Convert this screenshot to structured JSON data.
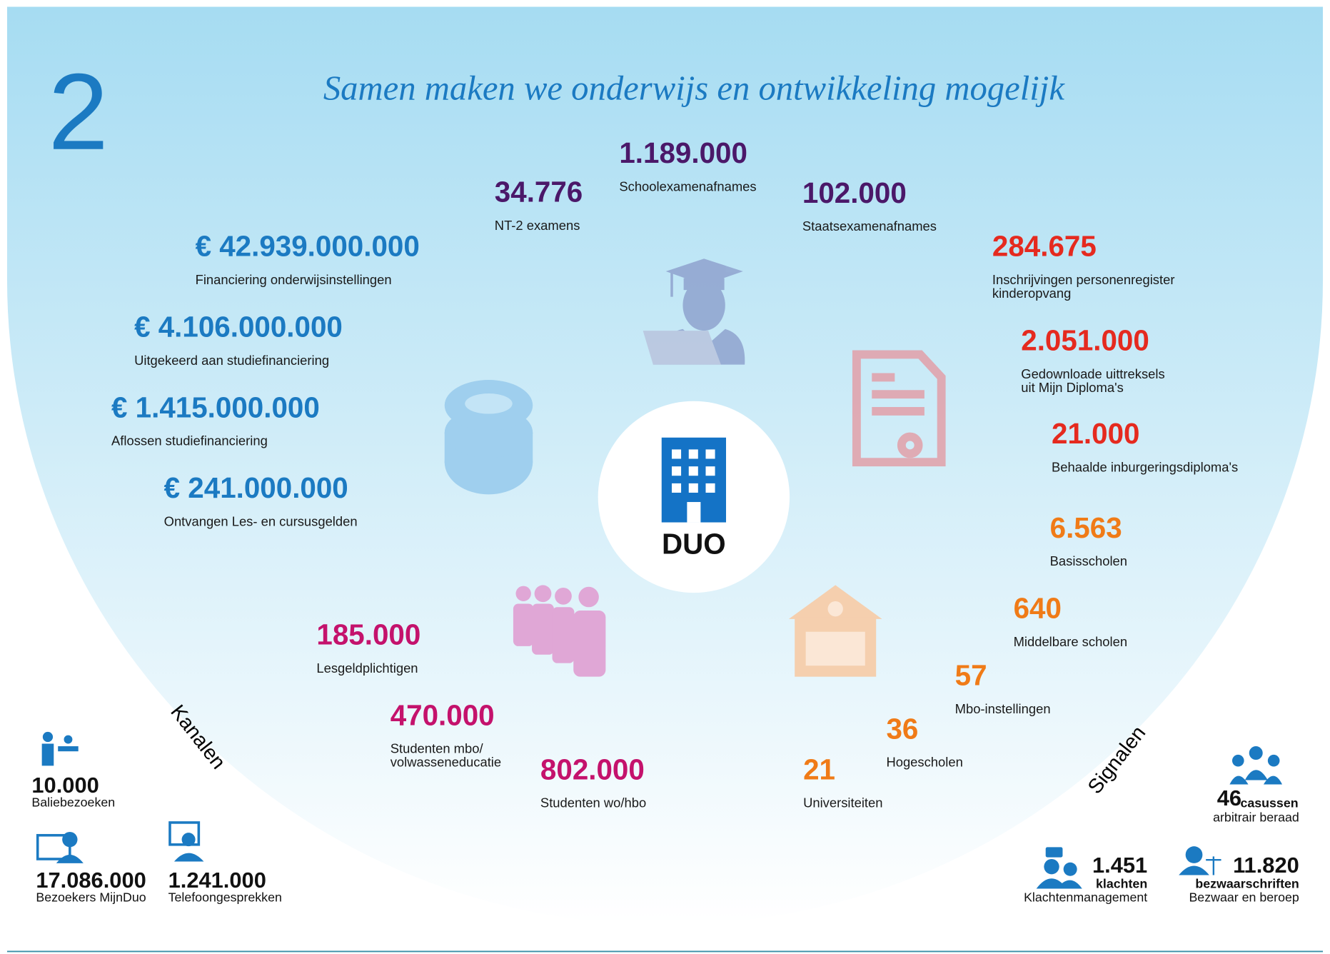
{
  "section_number": "2",
  "title": "Samen maken we onderwijs en ontwikkeling mogelijk",
  "center": "DUO",
  "groups": [
    {
      "color": "#4b1869",
      "items": [
        {
          "value": "1.189.000",
          "label": [
            "Schoolexamenafnames"
          ]
        },
        {
          "value": "34.776",
          "label": [
            "NT-2 examens"
          ]
        },
        {
          "value": "102.000",
          "label": [
            "Staatsexamenafnames"
          ]
        }
      ]
    },
    {
      "color": "#e52a1f",
      "items": [
        {
          "value": "284.675",
          "label": [
            "Inschrijvingen personenregister",
            "kinderopvang"
          ]
        },
        {
          "value": "2.051.000",
          "label": [
            "Gedownloade uittreksels",
            "uit Mijn Diploma's"
          ]
        },
        {
          "value": "21.000",
          "label": [
            "Behaalde inburgeringsdiploma's"
          ]
        }
      ]
    },
    {
      "color": "#f07b17",
      "items": [
        {
          "value": "6.563",
          "label": [
            "Basisscholen"
          ]
        },
        {
          "value": "640",
          "label": [
            "Middelbare scholen"
          ]
        },
        {
          "value": "57",
          "label": [
            "Mbo-instellingen"
          ]
        },
        {
          "value": "36",
          "label": [
            "Hogescholen"
          ]
        },
        {
          "value": "21",
          "label": [
            "Universiteiten"
          ]
        }
      ]
    },
    {
      "color": "#c4126c",
      "items": [
        {
          "value": "185.000",
          "label": [
            "Lesgeldplichtigen"
          ]
        },
        {
          "value": "470.000",
          "label": [
            "Studenten mbo/",
            "volwasseneducatie"
          ]
        },
        {
          "value": "802.000",
          "label": [
            "Studenten wo/hbo"
          ]
        }
      ]
    },
    {
      "color": "#1b7ac2",
      "items": [
        {
          "value": "€ 42.939.000.000",
          "label": [
            "Financiering onderwijsinstellingen"
          ]
        },
        {
          "value": "€ 4.106.000.000",
          "label": [
            "Uitgekeerd aan studiefinanciering"
          ]
        },
        {
          "value": "€ 1.415.000.000",
          "label": [
            "Aflossen studiefinanciering"
          ]
        },
        {
          "value": "€ 241.000.000",
          "label": [
            "Ontvangen Les- en cursusgelden"
          ]
        }
      ]
    }
  ],
  "channels": {
    "heading": "Kanalen",
    "items": [
      {
        "value": "10.000",
        "label": "Baliebezoeken"
      },
      {
        "value": "17.086.000",
        "label": "Bezoekers MijnDuo"
      },
      {
        "value": "1.241.000",
        "label": "Telefoongesprekken"
      }
    ]
  },
  "signals": {
    "heading": "Signalen",
    "items": [
      {
        "value": "46",
        "unit": "casussen",
        "label": "arbitrair beraad"
      },
      {
        "value": "1.451",
        "unit": "klachten",
        "label": "Klachtenmanagement"
      },
      {
        "value": "11.820",
        "unit": "bezwaarschriften",
        "label": "Bezwaar en beroep"
      }
    ]
  }
}
